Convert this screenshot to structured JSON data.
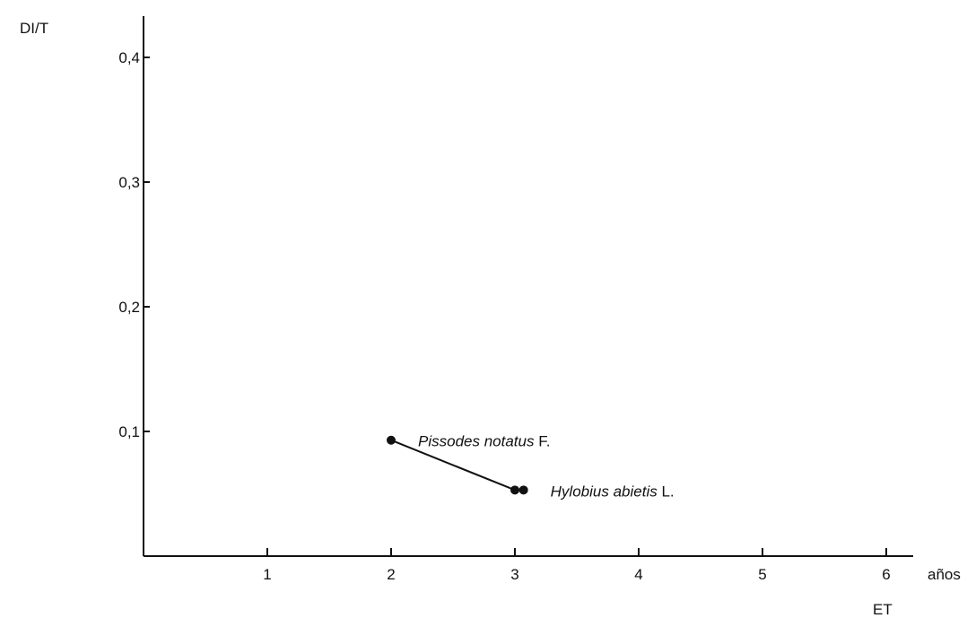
{
  "chart_data": {
    "type": "scatter",
    "title": "",
    "ylabel": "DI/T",
    "xlabel": "ET",
    "x_unit_label": "años",
    "xlim": [
      0,
      6.6
    ],
    "ylim": [
      0,
      0.44
    ],
    "x_ticks": [
      1,
      2,
      3,
      4,
      5,
      6
    ],
    "x_tick_labels": [
      "1",
      "2",
      "3",
      "4",
      "5",
      "6"
    ],
    "y_ticks": [
      0.1,
      0.2,
      0.3,
      0.4
    ],
    "y_tick_labels": [
      "0,1",
      "0,2",
      "0,3",
      "0,4"
    ],
    "grid": false,
    "points": [
      {
        "x": 2.0,
        "y": 0.093
      },
      {
        "x": 3.0,
        "y": 0.053
      },
      {
        "x": 3.07,
        "y": 0.053
      }
    ],
    "connecting_line": {
      "from": 0,
      "to": 1
    },
    "annotations": [
      {
        "italic": "Pissodes notatus",
        "suffix": " F.",
        "point": 0
      },
      {
        "italic": "Hylobius abietis",
        "suffix": " L.",
        "point": 2
      }
    ]
  }
}
